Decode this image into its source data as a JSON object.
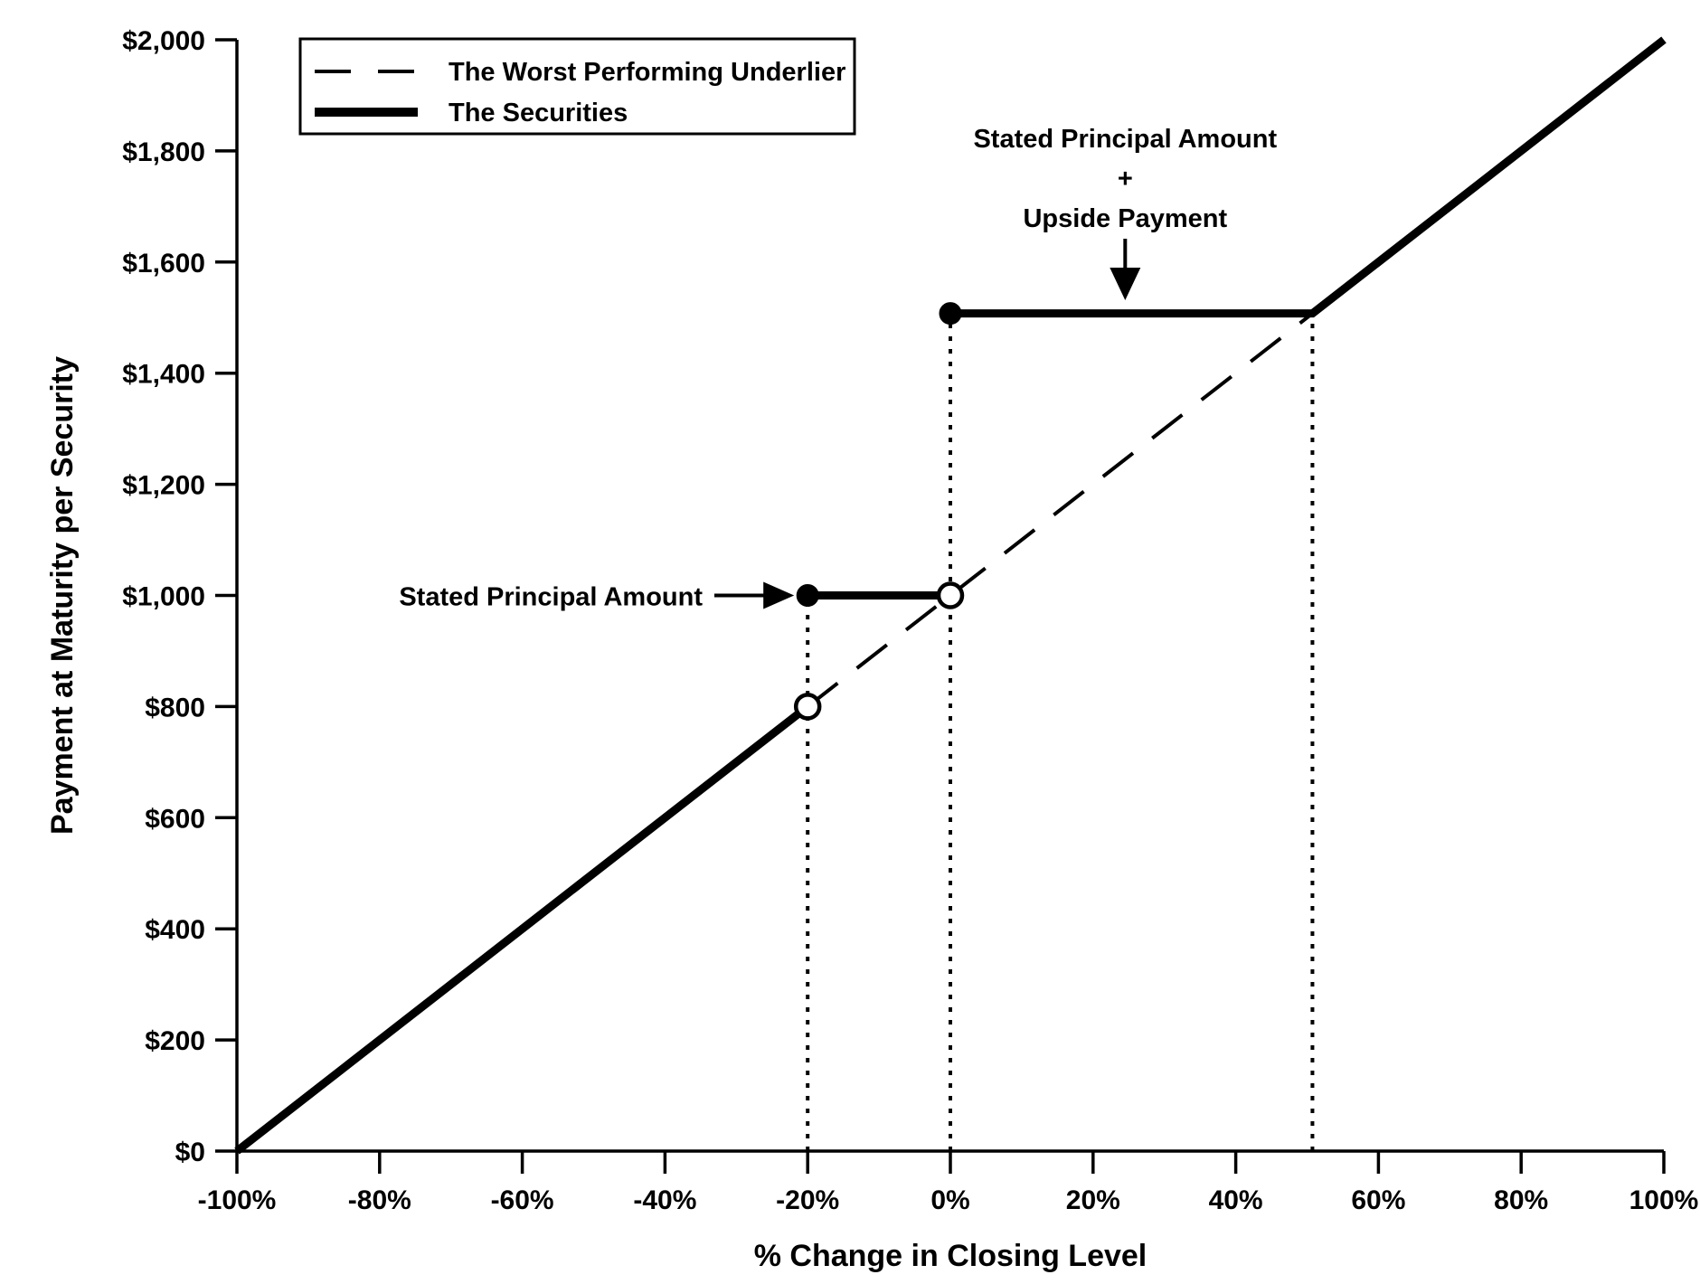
{
  "page": {
    "background_color": "#ffffff",
    "ink_color": "#000000"
  },
  "chart_data": {
    "type": "line",
    "title": "",
    "xlabel": "% Change in Closing Level",
    "ylabel": "Payment at Maturity per Security",
    "xlim": [
      -100,
      100
    ],
    "ylim": [
      0,
      2000
    ],
    "grid": false,
    "x_tick_values": [
      -100,
      -80,
      -60,
      -40,
      -20,
      0,
      20,
      40,
      60,
      80,
      100
    ],
    "x_tick_labels": [
      "-100%",
      "-80%",
      "-60%",
      "-40%",
      "-20%",
      "0%",
      "20%",
      "40%",
      "60%",
      "80%",
      "100%"
    ],
    "y_tick_values": [
      0,
      200,
      400,
      600,
      800,
      1000,
      1200,
      1400,
      1600,
      1800,
      2000
    ],
    "y_tick_labels": [
      "$0",
      "$200",
      "$400",
      "$600",
      "$800",
      "$1,000",
      "$1,200",
      "$1,400",
      "$1,600",
      "$1,800",
      "$2,000"
    ],
    "legend": {
      "position": "top-left",
      "entries": [
        {
          "label": "The Worst Performing Underlier",
          "style": "dashed"
        },
        {
          "label": "The Securities",
          "style": "solid-thick"
        }
      ]
    },
    "series": [
      {
        "name": "The Worst Performing Underlier",
        "style": "dashed",
        "visible_points": [
          [
            -20,
            800
          ],
          [
            50.75,
            1507.5
          ]
        ]
      },
      {
        "name": "The Securities",
        "style": "solid-thick",
        "segments": [
          {
            "points": [
              [
                -100,
                0
              ],
              [
                -20,
                800
              ]
            ],
            "markers": [
              {
                "at": [
                  -20,
                  800
                ],
                "type": "open"
              }
            ]
          },
          {
            "points": [
              [
                -20,
                1000
              ],
              [
                0,
                1000
              ]
            ],
            "markers": [
              {
                "at": [
                  -20,
                  1000
                ],
                "type": "filled"
              },
              {
                "at": [
                  0,
                  1000
                ],
                "type": "open"
              }
            ]
          },
          {
            "points": [
              [
                0,
                1507.5
              ],
              [
                50.75,
                1507.5
              ],
              [
                100,
                2000
              ]
            ],
            "markers": [
              {
                "at": [
                  0,
                  1507.5
                ],
                "type": "filled"
              }
            ]
          }
        ]
      }
    ],
    "reference_lines": [
      {
        "style": "dotted-vertical",
        "x": -20,
        "y_from": 0,
        "y_to": 1000
      },
      {
        "style": "dotted-vertical",
        "x": 0,
        "y_from": 0,
        "y_to": 1507.5
      },
      {
        "style": "dotted-vertical",
        "x": 50.75,
        "y_from": 0,
        "y_to": 1507.5
      }
    ],
    "annotations": [
      {
        "id": "upside-annotation",
        "lines": [
          "Stated Principal Amount",
          "+",
          "Upside Payment"
        ],
        "arrow": "down",
        "target_point": [
          24.5,
          1507.5
        ]
      },
      {
        "id": "principal-annotation",
        "lines": [
          "Stated Principal Amount"
        ],
        "arrow": "right",
        "target_point": [
          -20,
          1000
        ]
      }
    ]
  }
}
